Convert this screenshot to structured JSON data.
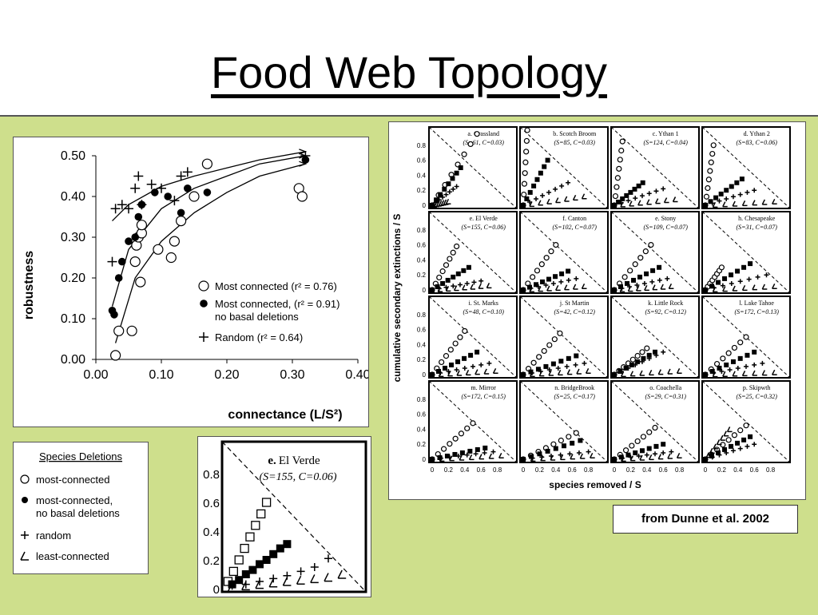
{
  "page": {
    "title": "Food Web Topology",
    "credit": "from Dunne et al. 2002"
  },
  "chart_data": [
    {
      "type": "scatter",
      "xlabel": "connectance (L/S²)",
      "ylabel": "robustness",
      "xlim": [
        0,
        0.4
      ],
      "ylim": [
        0,
        0.5
      ],
      "xticks": [
        "0.00",
        "0.10",
        "0.20",
        "0.30",
        "0.40"
      ],
      "yticks": [
        "0.00",
        "0.10",
        "0.20",
        "0.30",
        "0.40",
        "0.50"
      ],
      "legend": [
        {
          "label": "Most connected  (r² = 0.76)",
          "marker": "open-circle"
        },
        {
          "label": "Most connected,  (r² = 0.91)",
          "label2": "no basal deletions",
          "marker": "filled-circle"
        },
        {
          "label": "Random  (r² = 0.64)",
          "marker": "plus"
        }
      ],
      "series": [
        {
          "name": "Most connected",
          "marker": "open-circle",
          "x": [
            0.03,
            0.035,
            0.055,
            0.06,
            0.062,
            0.065,
            0.068,
            0.07,
            0.07,
            0.095,
            0.115,
            0.12,
            0.13,
            0.15,
            0.17,
            0.31,
            0.315
          ],
          "y": [
            0.01,
            0.07,
            0.07,
            0.24,
            0.28,
            0.3,
            0.19,
            0.31,
            0.33,
            0.27,
            0.25,
            0.29,
            0.34,
            0.4,
            0.48,
            0.42,
            0.4
          ]
        },
        {
          "name": "Most connected, no basal deletions",
          "marker": "filled-circle",
          "x": [
            0.025,
            0.028,
            0.035,
            0.04,
            0.05,
            0.06,
            0.065,
            0.07,
            0.09,
            0.11,
            0.13,
            0.14,
            0.17,
            0.32
          ],
          "y": [
            0.12,
            0.11,
            0.2,
            0.24,
            0.29,
            0.3,
            0.35,
            0.38,
            0.41,
            0.4,
            0.36,
            0.42,
            0.41,
            0.49
          ]
        },
        {
          "name": "Random",
          "marker": "plus",
          "x": [
            0.025,
            0.03,
            0.04,
            0.05,
            0.06,
            0.065,
            0.07,
            0.085,
            0.1,
            0.12,
            0.13,
            0.14,
            0.32
          ],
          "y": [
            0.24,
            0.37,
            0.38,
            0.37,
            0.42,
            0.45,
            0.38,
            0.43,
            0.42,
            0.39,
            0.45,
            0.46,
            0.5
          ]
        }
      ],
      "fits": [
        {
          "x": [
            0.03,
            0.06,
            0.1,
            0.15,
            0.2,
            0.25,
            0.32
          ],
          "y": [
            0.04,
            0.2,
            0.29,
            0.36,
            0.41,
            0.45,
            0.48
          ]
        },
        {
          "x": [
            0.025,
            0.05,
            0.1,
            0.15,
            0.2,
            0.25,
            0.32
          ],
          "y": [
            0.13,
            0.27,
            0.37,
            0.42,
            0.45,
            0.48,
            0.5
          ]
        },
        {
          "x": [
            0.025,
            0.05,
            0.1,
            0.15,
            0.2,
            0.25,
            0.32
          ],
          "y": [
            0.34,
            0.38,
            0.425,
            0.45,
            0.47,
            0.49,
            0.51
          ]
        }
      ]
    },
    {
      "type": "scatter",
      "ylabel": "cumulative secondary extinctions / S",
      "xlabel": "species removed / S",
      "yticks": [
        "0",
        "0.2",
        "0.4",
        "0.6",
        "0.8"
      ],
      "xticks": [
        "0",
        "0.2",
        "0.4",
        "0.6",
        "0.8"
      ],
      "panels": [
        {
          "id": "a.",
          "name": "Grassland",
          "stat": "(S=61, C=0.03)",
          "s": [
            [
              0.55,
              0.95
            ],
            [
              0.35,
              0.5
            ],
            [
              0.3,
              0.25
            ],
            [
              0.2,
              0.05
            ]
          ]
        },
        {
          "id": "b.",
          "name": "Scotch Broom",
          "stat": "(S=85, C=0.03)",
          "s": [
            [
              0.05,
              1.0
            ],
            [
              0.3,
              0.6
            ],
            [
              0.55,
              0.3
            ],
            [
              0.75,
              0.12
            ]
          ]
        },
        {
          "id": "c.",
          "name": "Ythan 1",
          "stat": "(S=124, C=0.04)",
          "s": [
            [
              0.1,
              0.85
            ],
            [
              0.35,
              0.3
            ],
            [
              0.6,
              0.22
            ],
            [
              0.75,
              0.08
            ]
          ]
        },
        {
          "id": "d.",
          "name": "Ythan 2",
          "stat": "(S=83, C=0.06)",
          "s": [
            [
              0.1,
              0.8
            ],
            [
              0.45,
              0.35
            ],
            [
              0.6,
              0.2
            ],
            [
              0.85,
              0.05
            ]
          ]
        },
        {
          "id": "e.",
          "name": "El Verde",
          "stat": "(S=155, C=0.06)",
          "s": [
            [
              0.3,
              0.58
            ],
            [
              0.45,
              0.3
            ],
            [
              0.6,
              0.12
            ],
            [
              0.7,
              0.06
            ]
          ]
        },
        {
          "id": "f.",
          "name": "Canton",
          "stat": "(S=102, C=0.07)",
          "s": [
            [
              0.4,
              0.6
            ],
            [
              0.55,
              0.25
            ],
            [
              0.65,
              0.15
            ],
            [
              0.75,
              0.05
            ]
          ]
        },
        {
          "id": "e.",
          "name": "Stony",
          "stat": "(S=109, C=0.07)",
          "s": [
            [
              0.45,
              0.6
            ],
            [
              0.55,
              0.3
            ],
            [
              0.65,
              0.15
            ],
            [
              0.7,
              0.05
            ]
          ]
        },
        {
          "id": "h.",
          "name": "Chesapeake",
          "stat": "(S=31, C=0.07)",
          "s": [
            [
              0.2,
              0.3
            ],
            [
              0.55,
              0.35
            ],
            [
              0.75,
              0.2
            ],
            [
              0.85,
              0.05
            ]
          ]
        },
        {
          "id": "i.",
          "name": "St. Marks",
          "stat": "(S=48, C=0.10)",
          "s": [
            [
              0.4,
              0.58
            ],
            [
              0.55,
              0.3
            ],
            [
              0.7,
              0.15
            ],
            [
              0.78,
              0.05
            ]
          ]
        },
        {
          "id": "j.",
          "name": "St Martin",
          "stat": "(S=42, C=0.12)",
          "s": [
            [
              0.45,
              0.55
            ],
            [
              0.65,
              0.25
            ],
            [
              0.75,
              0.15
            ],
            [
              0.8,
              0.05
            ]
          ]
        },
        {
          "id": "k.",
          "name": "Little Rock",
          "stat": "(S=92, C=0.12)",
          "s": [
            [
              0.4,
              0.35
            ],
            [
              0.5,
              0.3
            ],
            [
              0.6,
              0.3
            ],
            [
              0.8,
              0.05
            ]
          ]
        },
        {
          "id": "l.",
          "name": "Lake Tahoe",
          "stat": "(S=172, C=0.13)",
          "s": [
            [
              0.5,
              0.5
            ],
            [
              0.6,
              0.3
            ],
            [
              0.7,
              0.15
            ],
            [
              0.85,
              0.03
            ]
          ]
        },
        {
          "id": "m.",
          "name": "Mirror",
          "stat": "(S=172, C=0.15)",
          "s": [
            [
              0.5,
              0.48
            ],
            [
              0.65,
              0.15
            ],
            [
              0.75,
              0.1
            ],
            [
              0.85,
              0.05
            ]
          ]
        },
        {
          "id": "n.",
          "name": "BridgeBrook",
          "stat": "(S=25, C=0.17)",
          "s": [
            [
              0.65,
              0.35
            ],
            [
              0.7,
              0.25
            ],
            [
              0.8,
              0.1
            ],
            [
              0.85,
              0.05
            ]
          ]
        },
        {
          "id": "o.",
          "name": "Coachella",
          "stat": "(S=29, C=0.31)",
          "s": [
            [
              0.5,
              0.42
            ],
            [
              0.6,
              0.2
            ],
            [
              0.7,
              0.1
            ],
            [
              0.8,
              0.05
            ]
          ]
        },
        {
          "id": "p.",
          "name": "Skipwth",
          "stat": "(S=25, C=0.32)",
          "s": [
            [
              0.5,
              0.45
            ],
            [
              0.55,
              0.3
            ],
            [
              0.6,
              0.2
            ],
            [
              0.3,
              0.4
            ]
          ]
        }
      ]
    },
    {
      "type": "scatter",
      "panel_id": "e.",
      "panel_name": "El Verde",
      "panel_stat": "(S=155,   C=0.06)",
      "yticks": [
        "0",
        "0.2",
        "0.4",
        "0.6",
        "0.8"
      ],
      "ylim": [
        0,
        1.0
      ],
      "series": [
        {
          "name": "most-connected",
          "x": [
            0.02,
            0.06,
            0.1,
            0.14,
            0.18,
            0.22,
            0.26,
            0.3
          ],
          "y": [
            0.05,
            0.12,
            0.2,
            0.28,
            0.36,
            0.44,
            0.52,
            0.6
          ]
        },
        {
          "name": "most-connected, no basal deletions",
          "x": [
            0.05,
            0.1,
            0.15,
            0.2,
            0.25,
            0.3,
            0.35,
            0.4,
            0.45
          ],
          "y": [
            0.03,
            0.06,
            0.1,
            0.13,
            0.17,
            0.2,
            0.24,
            0.28,
            0.31
          ]
        },
        {
          "name": "random",
          "x": [
            0.05,
            0.15,
            0.25,
            0.35,
            0.45,
            0.55,
            0.65,
            0.75
          ],
          "y": [
            0.02,
            0.03,
            0.05,
            0.07,
            0.09,
            0.12,
            0.15,
            0.21
          ]
        },
        {
          "name": "least-connected",
          "x": [
            0.05,
            0.15,
            0.25,
            0.35,
            0.45,
            0.55,
            0.65,
            0.75,
            0.85
          ],
          "y": [
            0.01,
            0.02,
            0.03,
            0.04,
            0.05,
            0.06,
            0.07,
            0.08,
            0.1
          ]
        }
      ]
    }
  ],
  "legend_box": {
    "title": "Species Deletions",
    "items": [
      {
        "label": "most-connected",
        "marker": "open-circle"
      },
      {
        "label": "most-connected,",
        "label2": "no basal deletions",
        "marker": "filled-circle"
      },
      {
        "label": "random",
        "marker": "plus"
      },
      {
        "label": "least-connected",
        "marker": "triangle"
      }
    ]
  }
}
